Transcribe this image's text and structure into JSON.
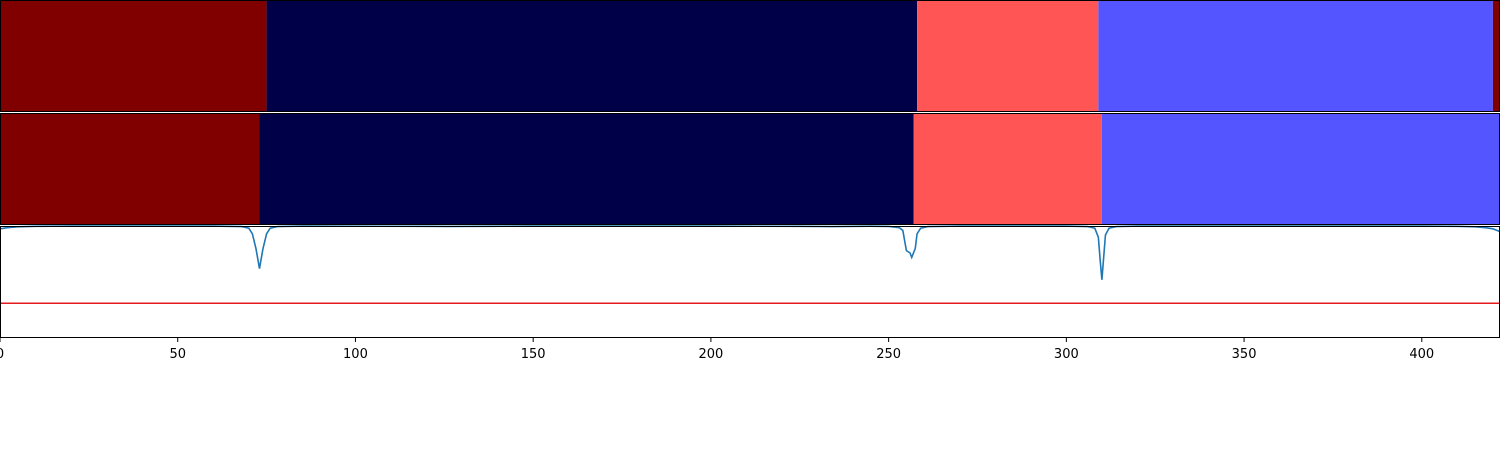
{
  "chart_data": [
    {
      "type": "heatmap",
      "xlim": [
        0,
        422
      ],
      "segments": [
        {
          "start": 0,
          "end": 75,
          "color": "#800000"
        },
        {
          "start": 75,
          "end": 258,
          "color": "#000048"
        },
        {
          "start": 258,
          "end": 309,
          "color": "#ff5555"
        },
        {
          "start": 309,
          "end": 420,
          "color": "#5555ff"
        },
        {
          "start": 420,
          "end": 422,
          "color": "#800000"
        }
      ]
    },
    {
      "type": "heatmap",
      "xlim": [
        0,
        422
      ],
      "segments": [
        {
          "start": 0,
          "end": 73,
          "color": "#800000"
        },
        {
          "start": 73,
          "end": 257,
          "color": "#000048"
        },
        {
          "start": 257,
          "end": 310,
          "color": "#ff5555"
        },
        {
          "start": 310,
          "end": 422,
          "color": "#5555ff"
        }
      ]
    },
    {
      "type": "line",
      "xlim": [
        0,
        422
      ],
      "ylim": [
        0,
        1
      ],
      "xticks": [
        0,
        50,
        100,
        150,
        200,
        250,
        300,
        350,
        400
      ],
      "series": [
        {
          "color": "#1f77b4",
          "points": [
            [
              0,
              0.975
            ],
            [
              2,
              0.985
            ],
            [
              5,
              0.993
            ],
            [
              10,
              0.997
            ],
            [
              20,
              0.999
            ],
            [
              60,
              0.999
            ],
            [
              68,
              0.995
            ],
            [
              70,
              0.98
            ],
            [
              71,
              0.93
            ],
            [
              72,
              0.8
            ],
            [
              73,
              0.62
            ],
            [
              74,
              0.8
            ],
            [
              75,
              0.93
            ],
            [
              76,
              0.98
            ],
            [
              78,
              0.995
            ],
            [
              85,
              0.999
            ],
            [
              120,
              0.997
            ],
            [
              126,
              0.996
            ],
            [
              150,
              0.999
            ],
            [
              200,
              0.999
            ],
            [
              225,
              0.997
            ],
            [
              234,
              0.995
            ],
            [
              245,
              0.998
            ],
            [
              250,
              0.996
            ],
            [
              253,
              0.985
            ],
            [
              254,
              0.96
            ],
            [
              255,
              0.78
            ],
            [
              256,
              0.76
            ],
            [
              256.5,
              0.72
            ],
            [
              257.5,
              0.8
            ],
            [
              258,
              0.93
            ],
            [
              259,
              0.98
            ],
            [
              261,
              0.995
            ],
            [
              270,
              0.999
            ],
            [
              300,
              0.999
            ],
            [
              306,
              0.995
            ],
            [
              308,
              0.98
            ],
            [
              309,
              0.9
            ],
            [
              309.5,
              0.7
            ],
            [
              310,
              0.52
            ],
            [
              310.5,
              0.72
            ],
            [
              311,
              0.92
            ],
            [
              312,
              0.98
            ],
            [
              314,
              0.995
            ],
            [
              320,
              0.999
            ],
            [
              400,
              0.999
            ],
            [
              410,
              0.997
            ],
            [
              415,
              0.993
            ],
            [
              418,
              0.985
            ],
            [
              420,
              0.975
            ],
            [
              422,
              0.95
            ]
          ]
        },
        {
          "color": "#e41a1c",
          "points": [
            [
              0,
              0.31
            ],
            [
              422,
              0.31
            ]
          ]
        }
      ]
    }
  ]
}
